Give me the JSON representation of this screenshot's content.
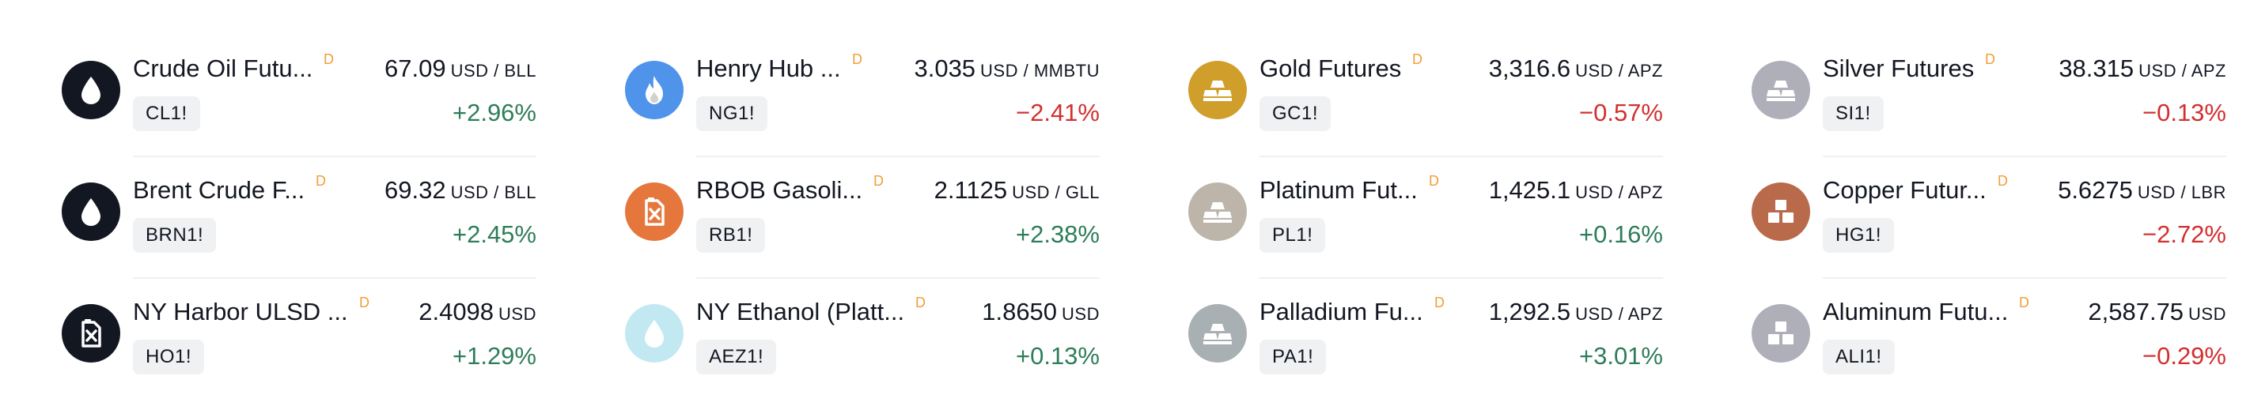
{
  "columns": [
    {
      "items": [
        {
          "name": "Crude Oil Futu...",
          "delay": "D",
          "price": "67.09",
          "unit": "USD / BLL",
          "ticker": "CL1!",
          "change": "+2.96%",
          "dir": "up",
          "icon": "oil-drop-icon",
          "icon_bg": "#131722",
          "icon_fg": "#ffffff"
        },
        {
          "name": "Brent Crude F...",
          "delay": "D",
          "price": "69.32",
          "unit": "USD / BLL",
          "ticker": "BRN1!",
          "change": "+2.45%",
          "dir": "up",
          "icon": "oil-drop-icon",
          "icon_bg": "#131722",
          "icon_fg": "#ffffff"
        },
        {
          "name": "NY Harbor ULSD ...",
          "delay": "D",
          "price": "2.4098",
          "unit": "USD",
          "ticker": "HO1!",
          "change": "+1.29%",
          "dir": "up",
          "icon": "fuel-canister-icon",
          "icon_bg": "#131722",
          "icon_fg": "#ffffff"
        }
      ]
    },
    {
      "items": [
        {
          "name": "Henry Hub ...",
          "delay": "D",
          "price": "3.035",
          "unit": "USD / MMBTU",
          "ticker": "NG1!",
          "change": "−2.41%",
          "dir": "down",
          "icon": "flame-icon",
          "icon_bg": "#4f93ea",
          "icon_fg": "#ffffff"
        },
        {
          "name": "RBOB Gasoli...",
          "delay": "D",
          "price": "2.1125",
          "unit": "USD / GLL",
          "ticker": "RB1!",
          "change": "+2.38%",
          "dir": "up",
          "icon": "fuel-canister-icon",
          "icon_bg": "#e5773c",
          "icon_fg": "#ffffff"
        },
        {
          "name": "NY Ethanol (Platt...",
          "delay": "D",
          "price": "1.8650",
          "unit": "USD",
          "ticker": "AEZ1!",
          "change": "+0.13%",
          "dir": "up",
          "icon": "oil-drop-icon",
          "icon_bg": "#c2e9f2",
          "icon_fg": "#ffffff"
        }
      ]
    },
    {
      "items": [
        {
          "name": "Gold Futures",
          "delay": "D",
          "price": "3,316.6",
          "unit": "USD / APZ",
          "ticker": "GC1!",
          "change": "−0.57%",
          "dir": "down",
          "icon": "ingot-stack-icon",
          "icon_bg": "#d09e2a",
          "icon_fg": "#ffffff"
        },
        {
          "name": "Platinum Fut...",
          "delay": "D",
          "price": "1,425.1",
          "unit": "USD / APZ",
          "ticker": "PL1!",
          "change": "+0.16%",
          "dir": "up",
          "icon": "ingot-stack-icon",
          "icon_bg": "#bdb5aa",
          "icon_fg": "#ffffff"
        },
        {
          "name": "Palladium Fu...",
          "delay": "D",
          "price": "1,292.5",
          "unit": "USD / APZ",
          "ticker": "PA1!",
          "change": "+3.01%",
          "dir": "up",
          "icon": "ingot-stack-icon",
          "icon_bg": "#a9b0b3",
          "icon_fg": "#ffffff"
        }
      ]
    },
    {
      "items": [
        {
          "name": "Silver Futures",
          "delay": "D",
          "price": "38.315",
          "unit": "USD / APZ",
          "ticker": "SI1!",
          "change": "−0.13%",
          "dir": "down",
          "icon": "ingot-stack-icon",
          "icon_bg": "#afafba",
          "icon_fg": "#ffffff"
        },
        {
          "name": "Copper Futur...",
          "delay": "D",
          "price": "5.6275",
          "unit": "USD / LBR",
          "ticker": "HG1!",
          "change": "−2.72%",
          "dir": "down",
          "icon": "cube-stack-icon",
          "icon_bg": "#b96a4b",
          "icon_fg": "#ffffff"
        },
        {
          "name": "Aluminum Futu...",
          "delay": "D",
          "price": "2,587.75",
          "unit": "USD",
          "ticker": "ALI1!",
          "change": "−0.29%",
          "dir": "down",
          "icon": "cube-stack-icon",
          "icon_bg": "#afafba",
          "icon_fg": "#ffffff"
        }
      ]
    }
  ]
}
